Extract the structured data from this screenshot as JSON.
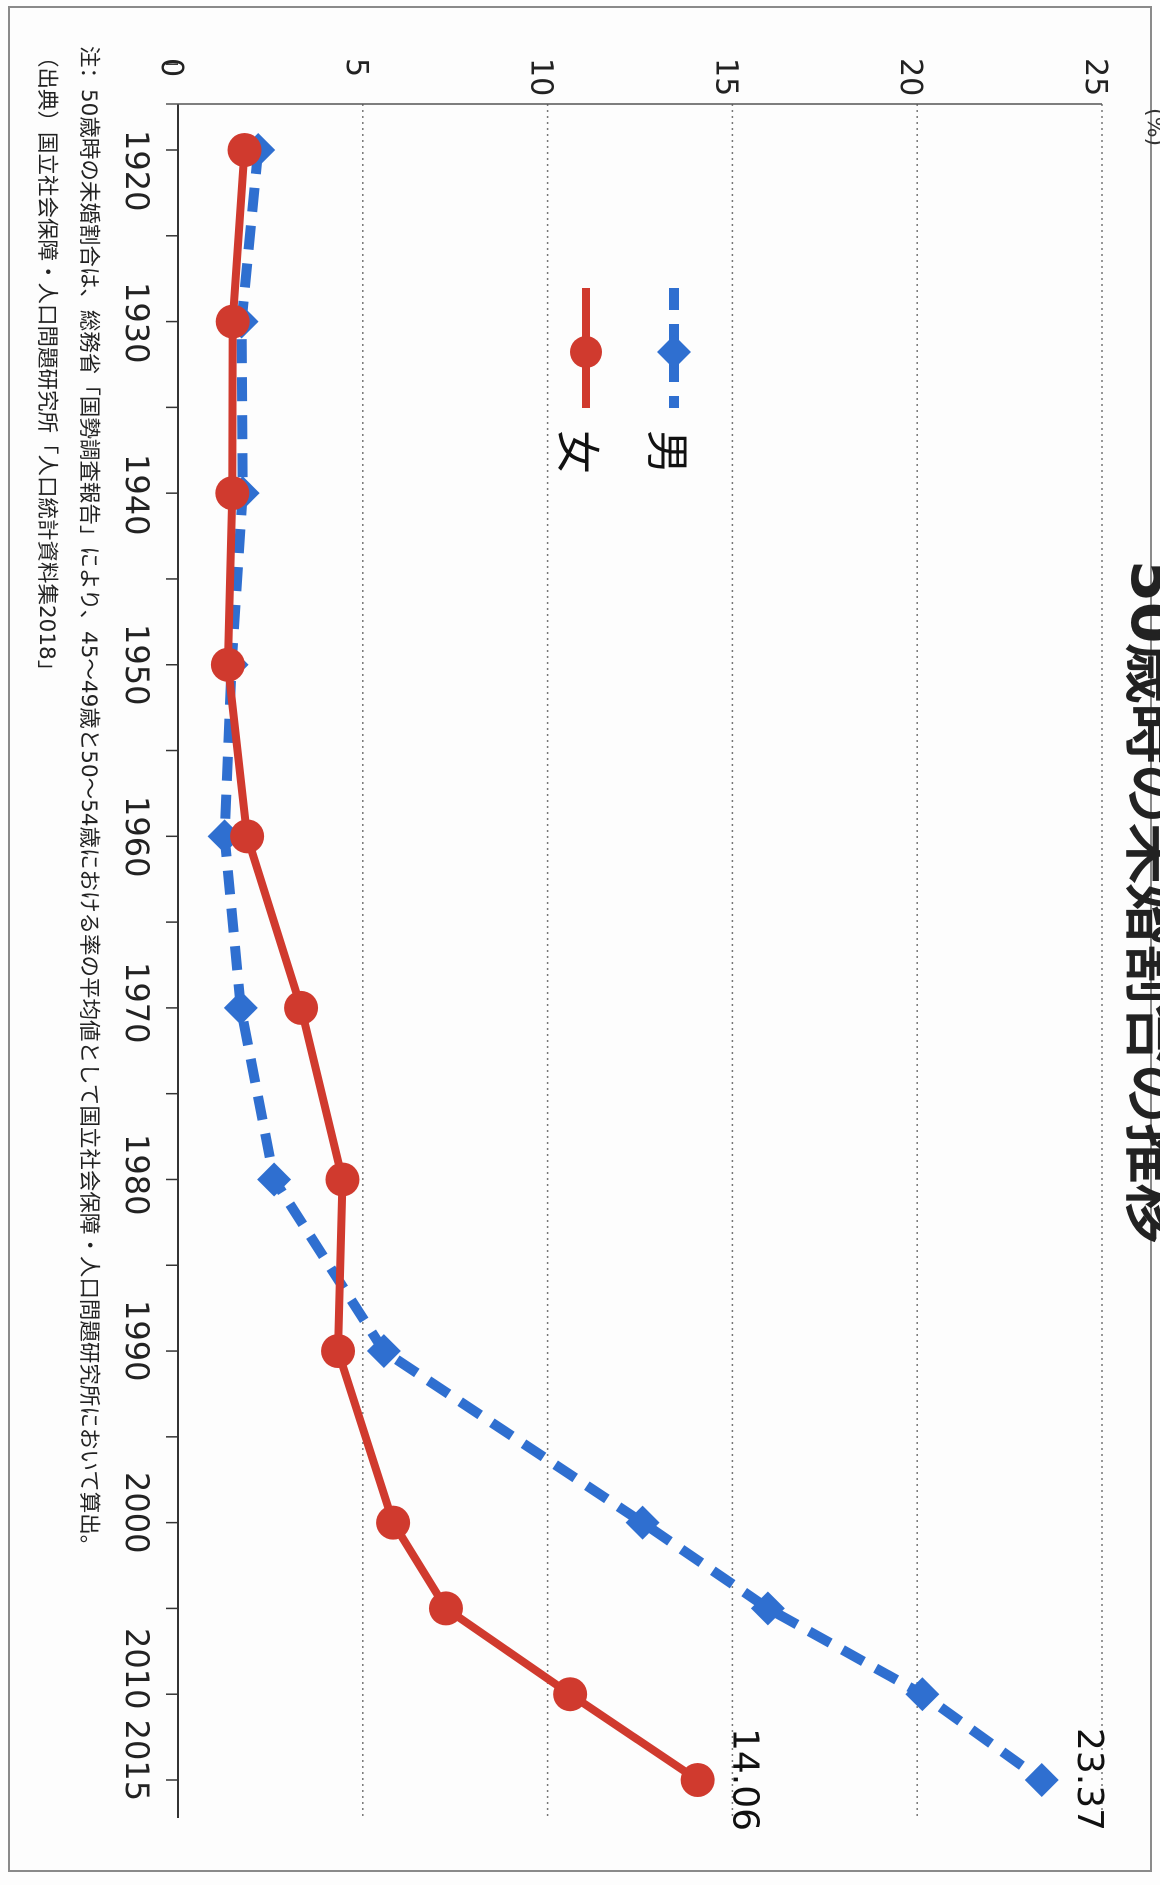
{
  "page": {
    "title_fragment": "50歳時の未婚割合の推移"
  },
  "chart_data": {
    "type": "line",
    "title": "",
    "x": [
      1920,
      1930,
      1940,
      1950,
      1960,
      1970,
      1980,
      1990,
      2000,
      2005,
      2010,
      2015
    ],
    "x_tick_labels": [
      "1920",
      "1930",
      "1940",
      "1950",
      "1960",
      "1970",
      "1980",
      "1990",
      "2000",
      "2010 2015"
    ],
    "y_tick_labels": [
      "0",
      "5",
      "10",
      "15",
      "20",
      "25"
    ],
    "y_unit": "(%)",
    "ylim": [
      0,
      25
    ],
    "xlim": [
      1916,
      2016
    ],
    "grid": true,
    "legend_position": "top-right",
    "series": [
      {
        "name": "男",
        "color": "#2f6fd0",
        "style": "dashed",
        "marker": "diamond",
        "values": [
          2.17,
          1.72,
          1.75,
          1.45,
          1.26,
          1.7,
          2.6,
          5.57,
          12.57,
          15.96,
          20.14,
          23.37
        ]
      },
      {
        "name": "女",
        "color": "#d03a2e",
        "style": "solid",
        "marker": "circle",
        "values": [
          1.8,
          1.48,
          1.47,
          1.35,
          1.87,
          3.33,
          4.45,
          4.33,
          5.82,
          7.25,
          10.61,
          14.06
        ]
      }
    ],
    "annotations": [
      {
        "series": "男",
        "text": "23.37"
      },
      {
        "series": "女",
        "text": "14.06"
      }
    ]
  },
  "notes": {
    "note": "注：50歳時の未婚割合は、総務省「国勢調査報告」により、45～49歳と50～54歳における率の平均値として国立社会保障・人口問題研究所において算出。",
    "source": "（出典）国立社会保障・人口問題研究所「人口統計資料集2018」"
  }
}
